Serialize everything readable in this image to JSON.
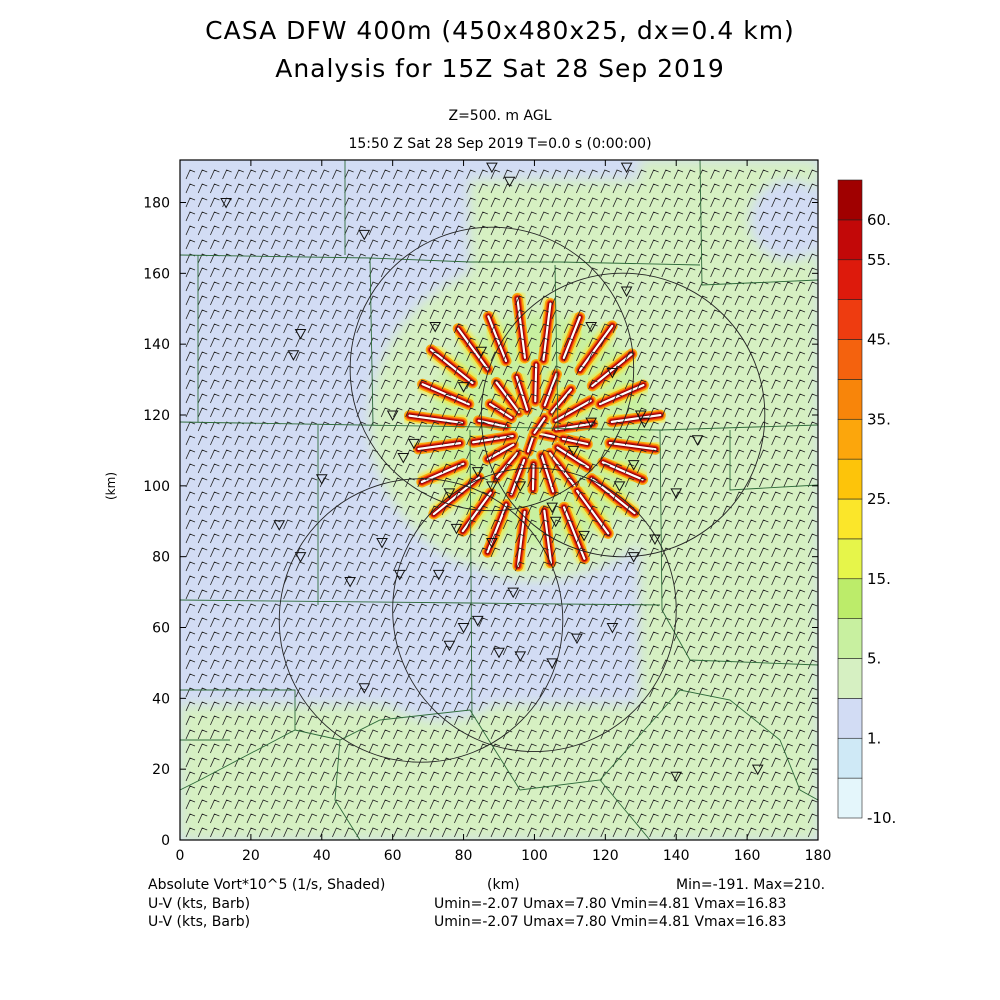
{
  "header": {
    "title_line1": "CASA DFW 400m (450x480x25, dx=0.4 km)",
    "title_line2": "Analysis for 15Z Sat 28 Sep 2019",
    "level": "Z=500. m AGL",
    "valid_time": "15:50 Z Sat 28 Sep 2019    T=0.0 s (0:00:00)"
  },
  "footer": {
    "field_label": "Absolute Vort*10^5 (1/s, Shaded)",
    "x_unit": "(km)",
    "minmax": "Min=-191. Max=210.",
    "wind1_label": "U-V (kts, Barb)",
    "wind1_stats": "Umin=-2.07 Umax=7.80 Vmin=4.81 Vmax=16.83",
    "wind2_label": "U-V (kts, Barb)",
    "wind2_stats": "Umin=-2.07 Umax=7.80 Vmin=4.81 Vmax=16.83"
  },
  "chart_data": {
    "type": "heatmap",
    "title": "CASA DFW 400m (450x480x25, dx=0.4 km)",
    "subtitle": "Analysis for 15Z Sat 28 Sep 2019",
    "xlabel": "(km)",
    "ylabel": "(km)",
    "xlim": [
      0,
      180
    ],
    "ylim": [
      0,
      192
    ],
    "x_ticks": [
      0,
      20,
      40,
      60,
      80,
      100,
      120,
      140,
      160,
      180
    ],
    "y_ticks": [
      0,
      20,
      40,
      60,
      80,
      100,
      120,
      140,
      160,
      180
    ],
    "grid": false,
    "field": "Absolute Vort*10^5 (1/s, Shaded)",
    "field_min": -191,
    "field_max": 210,
    "colorbar": {
      "placement": "right",
      "levels": [
        -10,
        -5,
        1,
        3,
        5,
        10,
        15,
        20,
        25,
        30,
        35,
        40,
        45,
        50,
        55,
        60
      ],
      "labels": [
        {
          "value": 60,
          "text": "60."
        },
        {
          "value": 55,
          "text": "55."
        },
        {
          "value": 45,
          "text": "45."
        },
        {
          "value": 35,
          "text": "35."
        },
        {
          "value": 25,
          "text": "25."
        },
        {
          "value": 15,
          "text": "15."
        },
        {
          "value": 5,
          "text": "5."
        },
        {
          "value": 1,
          "text": "1."
        },
        {
          "value": -10,
          "text": "-10."
        }
      ],
      "colors": [
        "#e4f6fb",
        "#cfe9f6",
        "#d2dcf4",
        "#d6f0c2",
        "#c8f0a0",
        "#bcec6a",
        "#e6f54a",
        "#fbe62a",
        "#fdc40a",
        "#fca60c",
        "#f8850a",
        "#f4620e",
        "#ee3c10",
        "#dd1a0c",
        "#c20808",
        "#a00000"
      ]
    },
    "wind_u_range": [
      -2.07,
      7.8
    ],
    "wind_v_range": [
      4.81,
      16.83
    ],
    "radar_rings": [
      {
        "center": [
          88,
          133
        ],
        "radius": 40
      },
      {
        "center": [
          100,
          65
        ],
        "radius": 40
      },
      {
        "center": [
          68,
          62
        ],
        "radius": 40
      },
      {
        "center": [
          125,
          120
        ],
        "radius": 40
      }
    ],
    "vorticity_center": [
      100,
      115
    ]
  }
}
